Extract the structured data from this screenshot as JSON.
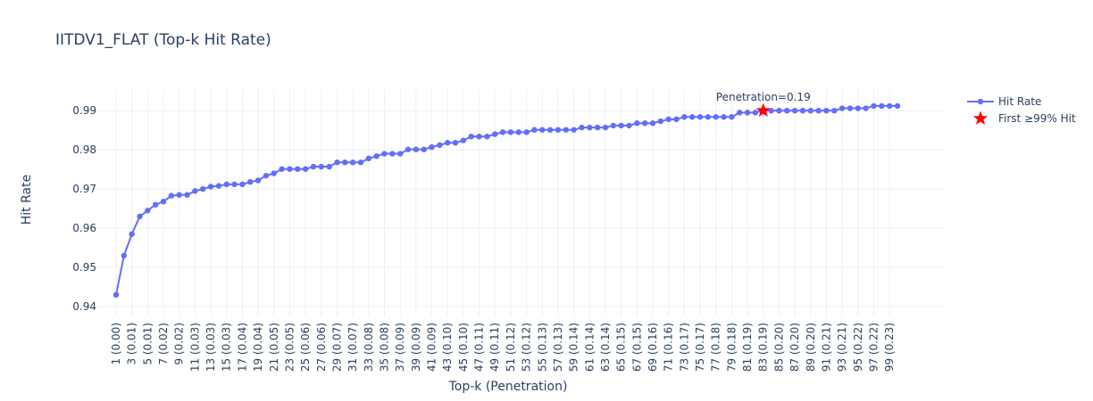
{
  "chart_data": {
    "type": "line",
    "title": "IITDV1_FLAT (Top-k Hit Rate)",
    "xlabel": "Top-k (Penetration)",
    "ylabel": "Hit Rate",
    "ylim": [
      0.9375,
      0.9955
    ],
    "yticks": [
      0.94,
      0.95,
      0.96,
      0.97,
      0.98,
      0.99
    ],
    "ytick_labels": [
      "0.94",
      "0.95",
      "0.96",
      "0.97",
      "0.98",
      "0.99"
    ],
    "xrange": [
      1,
      100
    ],
    "x": [
      1,
      2,
      3,
      4,
      5,
      6,
      7,
      8,
      9,
      10,
      11,
      12,
      13,
      14,
      15,
      16,
      17,
      18,
      19,
      20,
      21,
      22,
      23,
      24,
      25,
      26,
      27,
      28,
      29,
      30,
      31,
      32,
      33,
      34,
      35,
      36,
      37,
      38,
      39,
      40,
      41,
      42,
      43,
      44,
      45,
      46,
      47,
      48,
      49,
      50,
      51,
      52,
      53,
      54,
      55,
      56,
      57,
      58,
      59,
      60,
      61,
      62,
      63,
      64,
      65,
      66,
      67,
      68,
      69,
      70,
      71,
      72,
      73,
      74,
      75,
      76,
      77,
      78,
      79,
      80,
      81,
      82,
      83,
      84,
      85,
      86,
      87,
      88,
      89,
      90,
      91,
      92,
      93,
      94,
      95,
      96,
      97,
      98,
      99,
      100
    ],
    "xtick_positions": [
      1,
      3,
      5,
      7,
      9,
      11,
      13,
      15,
      17,
      19,
      21,
      23,
      25,
      27,
      29,
      31,
      33,
      35,
      37,
      39,
      41,
      43,
      45,
      47,
      49,
      51,
      53,
      55,
      57,
      59,
      61,
      63,
      65,
      67,
      69,
      71,
      73,
      75,
      77,
      79,
      81,
      83,
      85,
      87,
      89,
      91,
      93,
      95,
      97,
      99
    ],
    "xtick_labels": [
      "1 (0.00)",
      "3 (0.01)",
      "5 (0.01)",
      "7 (0.02)",
      "9 (0.02)",
      "11 (0.03)",
      "13 (0.03)",
      "15 (0.03)",
      "17 (0.04)",
      "19 (0.04)",
      "21 (0.05)",
      "23 (0.05)",
      "25 (0.06)",
      "27 (0.06)",
      "29 (0.07)",
      "31 (0.07)",
      "33 (0.08)",
      "35 (0.08)",
      "37 (0.09)",
      "39 (0.09)",
      "41 (0.09)",
      "43 (0.10)",
      "45 (0.10)",
      "47 (0.11)",
      "49 (0.11)",
      "51 (0.12)",
      "53 (0.12)",
      "55 (0.13)",
      "57 (0.13)",
      "59 (0.14)",
      "61 (0.14)",
      "63 (0.14)",
      "65 (0.15)",
      "67 (0.15)",
      "69 (0.16)",
      "71 (0.16)",
      "73 (0.17)",
      "75 (0.17)",
      "77 (0.18)",
      "79 (0.18)",
      "81 (0.19)",
      "83 (0.19)",
      "85 (0.20)",
      "87 (0.20)",
      "89 (0.20)",
      "91 (0.21)",
      "93 (0.21)",
      "95 (0.22)",
      "97 (0.22)",
      "99 (0.23)"
    ],
    "grid": true,
    "legend_position": "top-right",
    "series": [
      {
        "name": "Hit Rate",
        "color": "#636efa",
        "values": [
          0.943,
          0.953,
          0.9585,
          0.963,
          0.9645,
          0.966,
          0.9668,
          0.9683,
          0.9685,
          0.9685,
          0.9695,
          0.97,
          0.9706,
          0.9708,
          0.9712,
          0.9712,
          0.9712,
          0.9718,
          0.9722,
          0.9734,
          0.974,
          0.9751,
          0.9751,
          0.9751,
          0.9751,
          0.9757,
          0.9757,
          0.9757,
          0.9768,
          0.9768,
          0.9768,
          0.9768,
          0.9778,
          0.9784,
          0.979,
          0.979,
          0.979,
          0.9801,
          0.9801,
          0.9801,
          0.9807,
          0.9812,
          0.9818,
          0.9818,
          0.9824,
          0.9834,
          0.9834,
          0.9834,
          0.984,
          0.9845,
          0.9845,
          0.9845,
          0.9845,
          0.9851,
          0.9851,
          0.9851,
          0.9851,
          0.9851,
          0.9851,
          0.9857,
          0.9857,
          0.9857,
          0.9857,
          0.9862,
          0.9862,
          0.9862,
          0.9868,
          0.9868,
          0.9868,
          0.9873,
          0.9878,
          0.9878,
          0.9884,
          0.9884,
          0.9884,
          0.9884,
          0.9884,
          0.9884,
          0.9884,
          0.9895,
          0.9895,
          0.9895,
          0.99,
          0.99,
          0.99,
          0.99,
          0.99,
          0.99,
          0.99,
          0.99,
          0.99,
          0.99,
          0.9906,
          0.9906,
          0.9906,
          0.9906,
          0.9912,
          0.9912,
          0.9912,
          0.9912
        ]
      },
      {
        "name": "First ≥99% Hit",
        "color": "#ff0000",
        "marker": "star",
        "x": [
          83
        ],
        "values": [
          0.99
        ]
      }
    ],
    "annotations": [
      {
        "text": "Penetration=0.19",
        "x": 83,
        "y": 0.99
      }
    ]
  }
}
